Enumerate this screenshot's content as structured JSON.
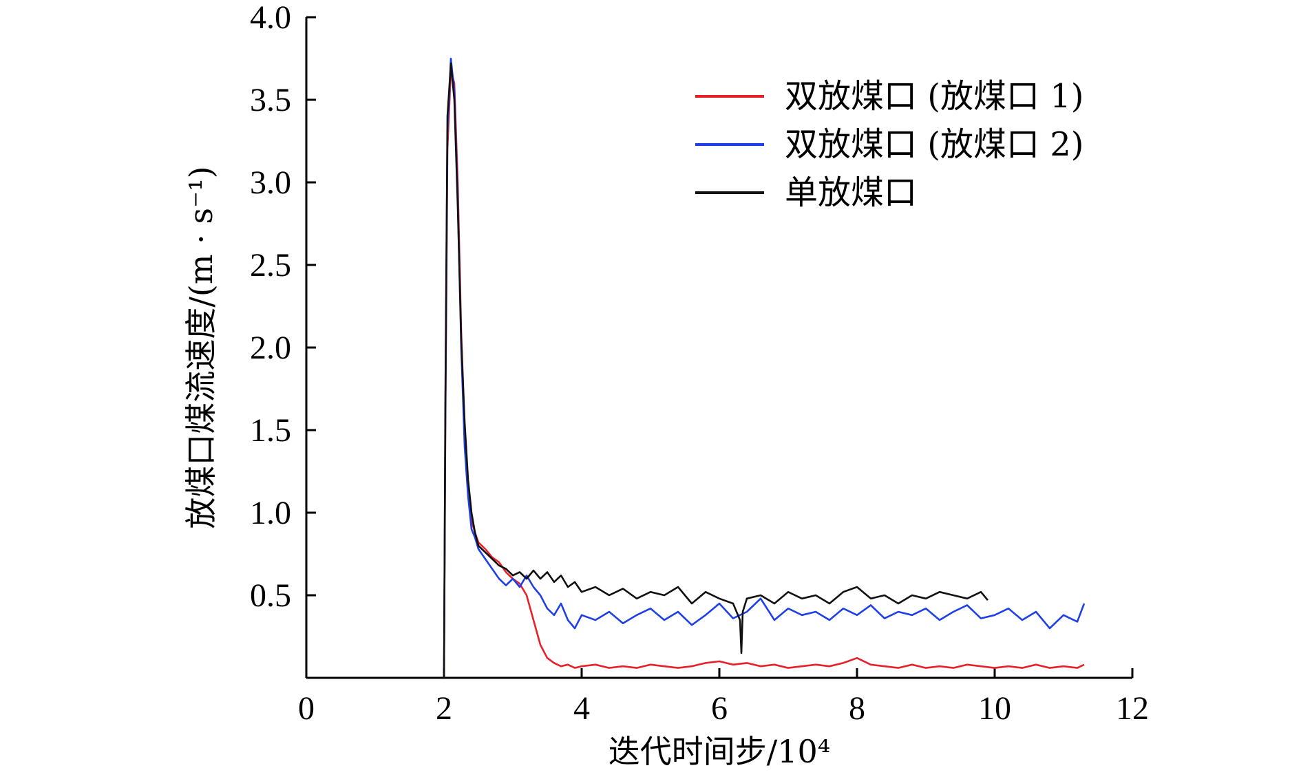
{
  "chart_data": {
    "type": "line",
    "title": "",
    "xlabel": "迭代时间步/10⁴",
    "ylabel": "放煤口煤流速度/(m · s⁻¹)",
    "xlim": [
      0,
      12
    ],
    "ylim": [
      0,
      4.0
    ],
    "xticks": [
      0,
      2,
      4,
      6,
      8,
      10,
      12
    ],
    "yticks": [
      0.5,
      1.0,
      1.5,
      2.0,
      2.5,
      3.0,
      3.5,
      4.0
    ],
    "xtick_labels": [
      "0",
      "2",
      "4",
      "6",
      "8",
      "10",
      "12"
    ],
    "ytick_labels": [
      "0.5",
      "1.0",
      "1.5",
      "2.0",
      "2.5",
      "3.0",
      "3.5",
      "4.0"
    ],
    "grid": false,
    "legend_position": "top-right",
    "series": [
      {
        "name": "双放煤口 (放煤口 1)",
        "color": "#e8202a",
        "x": [
          2.0,
          2.02,
          2.05,
          2.1,
          2.15,
          2.2,
          2.25,
          2.3,
          2.35,
          2.4,
          2.45,
          2.5,
          2.6,
          2.7,
          2.8,
          2.9,
          3.0,
          3.1,
          3.2,
          3.3,
          3.4,
          3.5,
          3.6,
          3.7,
          3.8,
          3.9,
          4.0,
          4.2,
          4.4,
          4.6,
          4.8,
          5.0,
          5.2,
          5.4,
          5.6,
          5.8,
          6.0,
          6.2,
          6.4,
          6.6,
          6.8,
          7.0,
          7.2,
          7.4,
          7.6,
          7.8,
          8.0,
          8.2,
          8.4,
          8.6,
          8.8,
          9.0,
          9.2,
          9.4,
          9.6,
          9.8,
          10.0,
          10.2,
          10.4,
          10.6,
          10.8,
          11.0,
          11.2,
          11.3
        ],
        "y": [
          0.0,
          1.5,
          3.2,
          3.68,
          3.6,
          3.0,
          2.1,
          1.5,
          1.15,
          0.95,
          0.88,
          0.82,
          0.78,
          0.73,
          0.7,
          0.64,
          0.6,
          0.57,
          0.5,
          0.35,
          0.2,
          0.12,
          0.09,
          0.07,
          0.08,
          0.06,
          0.07,
          0.08,
          0.06,
          0.07,
          0.06,
          0.08,
          0.07,
          0.06,
          0.07,
          0.09,
          0.1,
          0.08,
          0.09,
          0.07,
          0.08,
          0.06,
          0.07,
          0.08,
          0.07,
          0.09,
          0.12,
          0.08,
          0.07,
          0.06,
          0.08,
          0.06,
          0.07,
          0.06,
          0.08,
          0.07,
          0.06,
          0.07,
          0.06,
          0.08,
          0.06,
          0.07,
          0.06,
          0.08
        ]
      },
      {
        "name": "双放煤口 (放煤口 2)",
        "color": "#1f3fe8",
        "x": [
          2.0,
          2.02,
          2.05,
          2.1,
          2.15,
          2.2,
          2.25,
          2.3,
          2.35,
          2.4,
          2.45,
          2.5,
          2.6,
          2.7,
          2.8,
          2.9,
          3.0,
          3.1,
          3.2,
          3.3,
          3.4,
          3.5,
          3.6,
          3.7,
          3.8,
          3.9,
          4.0,
          4.2,
          4.4,
          4.6,
          4.8,
          5.0,
          5.2,
          5.4,
          5.6,
          5.8,
          6.0,
          6.2,
          6.4,
          6.6,
          6.8,
          7.0,
          7.2,
          7.4,
          7.6,
          7.8,
          8.0,
          8.2,
          8.4,
          8.6,
          8.8,
          9.0,
          9.2,
          9.4,
          9.6,
          9.8,
          10.0,
          10.2,
          10.4,
          10.6,
          10.8,
          11.0,
          11.2,
          11.3
        ],
        "y": [
          0.0,
          1.6,
          3.3,
          3.75,
          3.55,
          2.9,
          2.0,
          1.4,
          1.1,
          0.9,
          0.85,
          0.78,
          0.72,
          0.66,
          0.6,
          0.56,
          0.6,
          0.55,
          0.62,
          0.55,
          0.5,
          0.42,
          0.38,
          0.45,
          0.35,
          0.3,
          0.38,
          0.35,
          0.4,
          0.33,
          0.38,
          0.42,
          0.35,
          0.4,
          0.32,
          0.38,
          0.45,
          0.36,
          0.4,
          0.48,
          0.35,
          0.42,
          0.38,
          0.4,
          0.35,
          0.42,
          0.38,
          0.44,
          0.36,
          0.4,
          0.38,
          0.42,
          0.35,
          0.4,
          0.44,
          0.36,
          0.38,
          0.42,
          0.35,
          0.4,
          0.3,
          0.38,
          0.34,
          0.45
        ]
      },
      {
        "name": "单放煤口",
        "color": "#111111",
        "x": [
          2.0,
          2.02,
          2.05,
          2.1,
          2.15,
          2.2,
          2.25,
          2.3,
          2.35,
          2.4,
          2.45,
          2.5,
          2.6,
          2.7,
          2.8,
          2.9,
          3.0,
          3.1,
          3.2,
          3.3,
          3.4,
          3.5,
          3.6,
          3.7,
          3.8,
          3.9,
          4.0,
          4.2,
          4.4,
          4.6,
          4.8,
          5.0,
          5.2,
          5.4,
          5.6,
          5.8,
          6.0,
          6.2,
          6.3,
          6.32,
          6.34,
          6.4,
          6.6,
          6.8,
          7.0,
          7.2,
          7.4,
          7.6,
          7.8,
          8.0,
          8.2,
          8.4,
          8.6,
          8.8,
          9.0,
          9.2,
          9.4,
          9.6,
          9.8,
          9.9
        ],
        "y": [
          0.0,
          1.7,
          3.4,
          3.72,
          3.5,
          2.85,
          2.05,
          1.55,
          1.2,
          1.0,
          0.88,
          0.8,
          0.76,
          0.72,
          0.68,
          0.66,
          0.62,
          0.64,
          0.6,
          0.65,
          0.6,
          0.64,
          0.58,
          0.62,
          0.55,
          0.58,
          0.52,
          0.55,
          0.5,
          0.54,
          0.48,
          0.52,
          0.5,
          0.55,
          0.45,
          0.52,
          0.48,
          0.45,
          0.35,
          0.15,
          0.4,
          0.48,
          0.5,
          0.45,
          0.52,
          0.48,
          0.5,
          0.45,
          0.52,
          0.55,
          0.48,
          0.5,
          0.45,
          0.5,
          0.48,
          0.52,
          0.5,
          0.48,
          0.52,
          0.47
        ]
      }
    ]
  }
}
